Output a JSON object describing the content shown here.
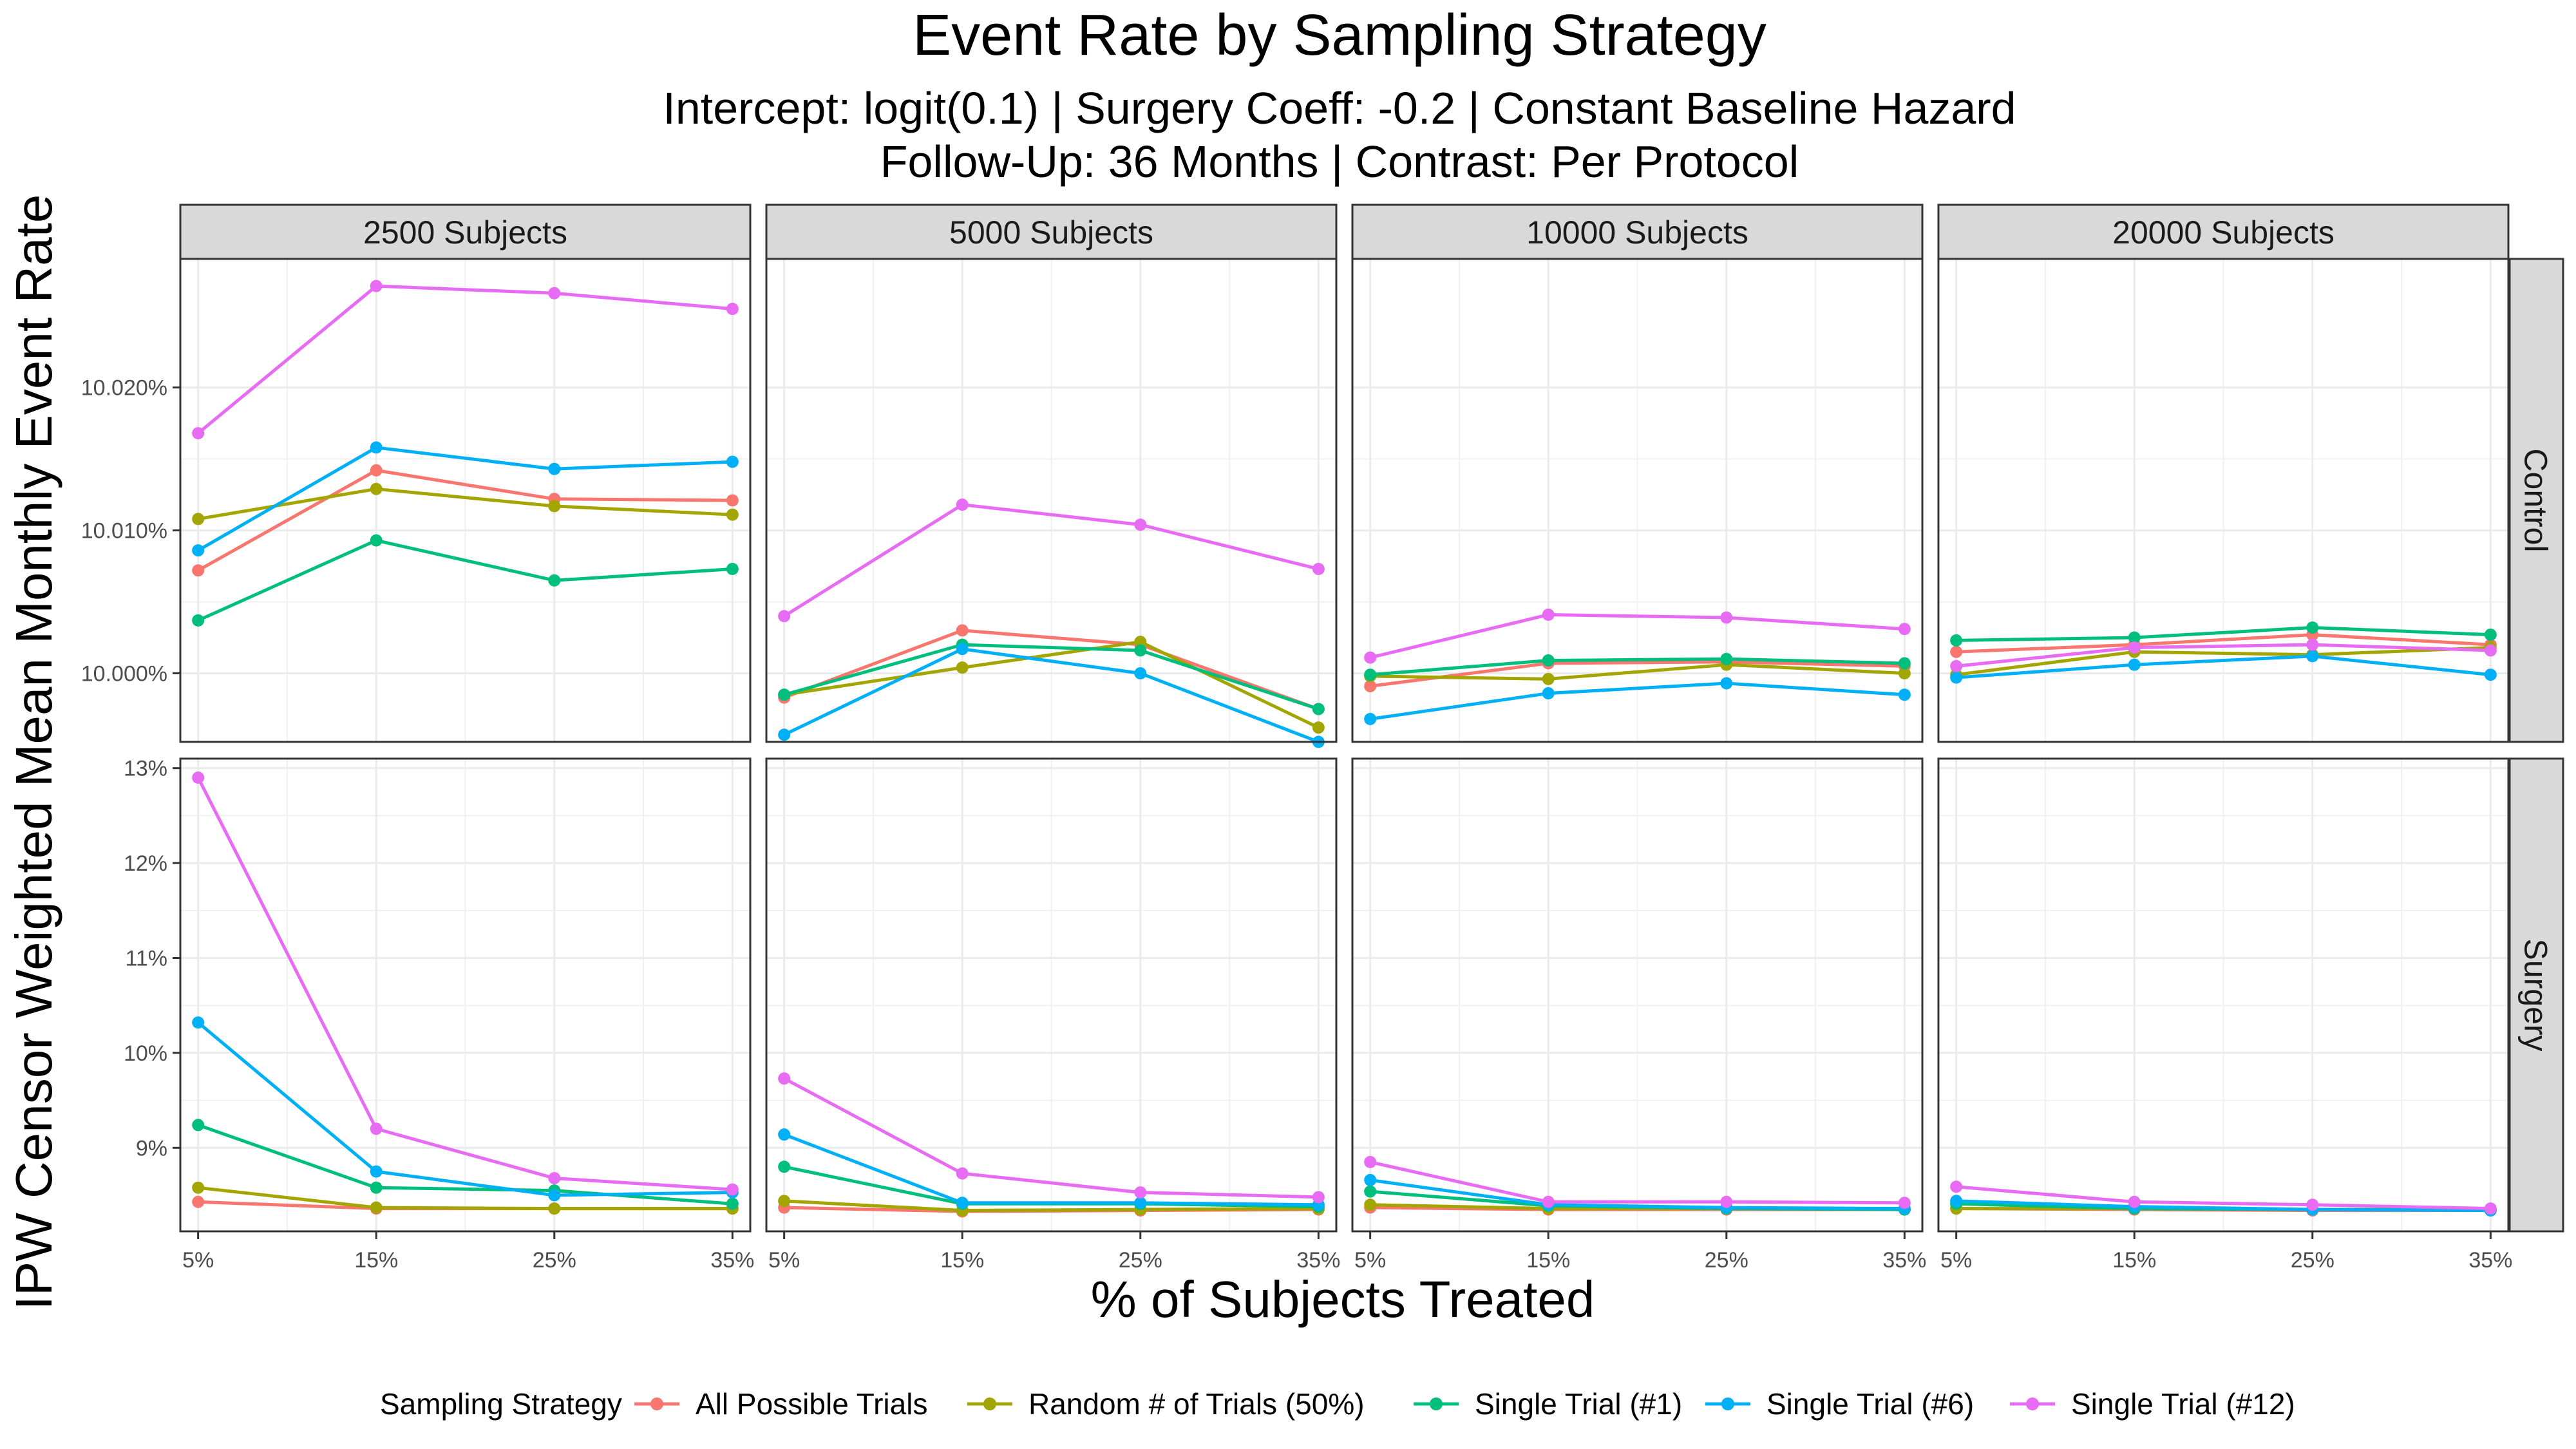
{
  "chart_data": {
    "type": "line",
    "title": "Event Rate by Sampling Strategy",
    "subtitle_lines": [
      "Intercept: logit(0.1) | Surgery Coeff: -0.2 | Constant Baseline Hazard",
      "Follow-Up: 36 Months | Contrast: Per Protocol"
    ],
    "xlabel": "% of Subjects Treated",
    "ylabel": "IPW Censor Weighted Mean Monthly Event Rate",
    "x": [
      5,
      15,
      25,
      35
    ],
    "x_tick_labels": [
      "5%",
      "15%",
      "25%",
      "35%"
    ],
    "grid": true,
    "legend_position": "bottom",
    "legend_title": "Sampling Strategy",
    "columns": [
      "2500 Subjects",
      "5000 Subjects",
      "10000 Subjects",
      "20000 Subjects"
    ],
    "rows": [
      {
        "label": "Control",
        "ylim": [
          9.9952,
          10.029
        ],
        "y_ticks": [
          10.0,
          10.01,
          10.02
        ],
        "y_tick_labels": [
          "10.000%",
          "10.010%",
          "10.020%"
        ],
        "y_unit": "%"
      },
      {
        "label": "Surgery",
        "ylim": [
          8.12,
          13.1
        ],
        "y_ticks": [
          9,
          10,
          11,
          12,
          13
        ],
        "y_tick_labels": [
          "9%",
          "10%",
          "11%",
          "12%",
          "13%"
        ],
        "y_unit": "%"
      }
    ],
    "series": [
      {
        "name": "All Possible Trials",
        "color": "#F8766D",
        "values": {
          "Control": [
            [
              10.0072,
              10.0142,
              10.0122,
              10.0121
            ],
            [
              9.9983,
              10.003,
              10.002,
              9.9975
            ],
            [
              9.9991,
              10.0007,
              10.0008,
              10.0005
            ],
            [
              10.0015,
              10.002,
              10.0027,
              10.002
            ]
          ],
          "Surgery": [
            [
              8.43,
              8.36,
              8.36,
              8.36
            ],
            [
              8.37,
              8.33,
              8.34,
              8.35
            ],
            [
              8.37,
              8.35,
              8.35,
              8.35
            ],
            [
              8.36,
              8.35,
              8.34,
              8.34
            ]
          ]
        }
      },
      {
        "name": "Random # of Trials (50%)",
        "color": "#A3A500",
        "values": {
          "Control": [
            [
              10.0108,
              10.0129,
              10.0117,
              10.0111
            ],
            [
              9.9985,
              10.0004,
              10.0022,
              9.9962
            ],
            [
              9.9998,
              9.9996,
              10.0006,
              10.0
            ],
            [
              9.9999,
              10.0015,
              10.0013,
              10.0018
            ]
          ],
          "Surgery": [
            [
              8.58,
              8.37,
              8.36,
              8.36
            ],
            [
              8.44,
              8.34,
              8.35,
              8.36
            ],
            [
              8.4,
              8.36,
              8.36,
              8.36
            ],
            [
              8.36,
              8.36,
              8.35,
              8.35
            ]
          ]
        }
      },
      {
        "name": "Single Trial (#1)",
        "color": "#00BF7D",
        "values": {
          "Control": [
            [
              10.0037,
              10.0093,
              10.0065,
              10.0073
            ],
            [
              9.9985,
              10.002,
              10.0016,
              9.9975
            ],
            [
              9.9999,
              10.0009,
              10.001,
              10.0007
            ],
            [
              10.0023,
              10.0025,
              10.0032,
              10.0027
            ]
          ],
          "Surgery": [
            [
              9.24,
              8.58,
              8.55,
              8.41
            ],
            [
              8.8,
              8.41,
              8.41,
              8.38
            ],
            [
              8.54,
              8.39,
              8.36,
              8.35
            ],
            [
              8.41,
              8.36,
              8.35,
              8.35
            ]
          ]
        }
      },
      {
        "name": "Single Trial (#6)",
        "color": "#00B0F6",
        "values": {
          "Control": [
            [
              10.0086,
              10.0158,
              10.0143,
              10.0148
            ],
            [
              9.9957,
              10.0017,
              10.0,
              9.9952
            ],
            [
              9.9968,
              9.9986,
              9.9993,
              9.9985
            ],
            [
              9.9997,
              10.0006,
              10.0012,
              9.9999
            ]
          ],
          "Surgery": [
            [
              10.32,
              8.75,
              8.5,
              8.53
            ],
            [
              9.14,
              8.42,
              8.42,
              8.4
            ],
            [
              8.66,
              8.4,
              8.37,
              8.36
            ],
            [
              8.44,
              8.38,
              8.35,
              8.34
            ]
          ]
        }
      },
      {
        "name": "Single Trial (#12)",
        "color": "#E76BF3",
        "values": {
          "Control": [
            [
              10.0168,
              10.0271,
              10.0266,
              10.0255
            ],
            [
              10.004,
              10.0118,
              10.0104,
              10.0073
            ],
            [
              10.0011,
              10.0041,
              10.0039,
              10.0031
            ],
            [
              10.0005,
              10.0018,
              10.002,
              10.0016
            ]
          ],
          "Surgery": [
            [
              12.9,
              9.2,
              8.68,
              8.56
            ],
            [
              9.73,
              8.73,
              8.53,
              8.48
            ],
            [
              8.85,
              8.43,
              8.43,
              8.42
            ],
            [
              8.59,
              8.43,
              8.4,
              8.36
            ]
          ]
        }
      }
    ]
  }
}
